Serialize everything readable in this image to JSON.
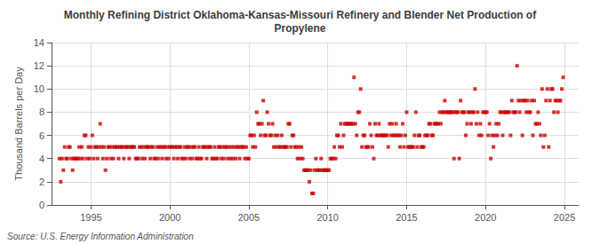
{
  "chart_data": {
    "type": "scatter",
    "title": "Monthly Refining District Oklahoma-Kansas-Missouri Refinery and Blender Net Production of\nPropylene",
    "ylabel": "Thousand Barrels per Day",
    "source": "Source: U.S. Energy Information Administration",
    "color": "#cc0000",
    "marker": "square",
    "grid": true,
    "xlim": [
      1992.5,
      2025.9
    ],
    "ylim": [
      0,
      14
    ],
    "xticks": [
      1995,
      2000,
      2005,
      2010,
      2015,
      2020,
      2025
    ],
    "yticks": [
      0,
      2,
      4,
      6,
      8,
      10,
      12,
      14
    ],
    "x": [
      1993.0,
      1993.083,
      1993.167,
      1993.25,
      1993.333,
      1993.417,
      1993.5,
      1993.583,
      1993.667,
      1993.75,
      1993.833,
      1993.917,
      1994.0,
      1994.083,
      1994.167,
      1994.25,
      1994.333,
      1994.417,
      1994.5,
      1994.583,
      1994.667,
      1994.75,
      1994.833,
      1994.917,
      1995.0,
      1995.083,
      1995.167,
      1995.25,
      1995.333,
      1995.417,
      1995.5,
      1995.583,
      1995.667,
      1995.75,
      1995.833,
      1995.917,
      1996.0,
      1996.083,
      1996.167,
      1996.25,
      1996.333,
      1996.417,
      1996.5,
      1996.583,
      1996.667,
      1996.75,
      1996.833,
      1996.917,
      1997.0,
      1997.083,
      1997.167,
      1997.25,
      1997.333,
      1997.417,
      1997.5,
      1997.583,
      1997.667,
      1997.75,
      1997.833,
      1997.917,
      1998.0,
      1998.083,
      1998.167,
      1998.25,
      1998.333,
      1998.417,
      1998.5,
      1998.583,
      1998.667,
      1998.75,
      1998.833,
      1998.917,
      1999.0,
      1999.083,
      1999.167,
      1999.25,
      1999.333,
      1999.417,
      1999.5,
      1999.583,
      1999.667,
      1999.75,
      1999.833,
      1999.917,
      2000.0,
      2000.083,
      2000.167,
      2000.25,
      2000.333,
      2000.417,
      2000.5,
      2000.583,
      2000.667,
      2000.75,
      2000.833,
      2000.917,
      2001.0,
      2001.083,
      2001.167,
      2001.25,
      2001.333,
      2001.417,
      2001.5,
      2001.583,
      2001.667,
      2001.75,
      2001.833,
      2001.917,
      2002.0,
      2002.083,
      2002.167,
      2002.25,
      2002.333,
      2002.417,
      2002.5,
      2002.583,
      2002.667,
      2002.75,
      2002.833,
      2002.917,
      2003.0,
      2003.083,
      2003.167,
      2003.25,
      2003.333,
      2003.417,
      2003.5,
      2003.583,
      2003.667,
      2003.75,
      2003.833,
      2003.917,
      2004.0,
      2004.083,
      2004.167,
      2004.25,
      2004.333,
      2004.417,
      2004.5,
      2004.583,
      2004.667,
      2004.75,
      2004.833,
      2004.917,
      2005.0,
      2005.083,
      2005.167,
      2005.25,
      2005.333,
      2005.417,
      2005.5,
      2005.583,
      2005.667,
      2005.75,
      2005.833,
      2005.917,
      2006.0,
      2006.083,
      2006.167,
      2006.25,
      2006.333,
      2006.417,
      2006.5,
      2006.583,
      2006.667,
      2006.75,
      2006.833,
      2006.917,
      2007.0,
      2007.083,
      2007.167,
      2007.25,
      2007.333,
      2007.417,
      2007.5,
      2007.583,
      2007.667,
      2007.75,
      2007.833,
      2007.917,
      2008.0,
      2008.083,
      2008.167,
      2008.25,
      2008.333,
      2008.417,
      2008.5,
      2008.583,
      2008.667,
      2008.75,
      2008.833,
      2008.917,
      2009.0,
      2009.083,
      2009.167,
      2009.25,
      2009.333,
      2009.417,
      2009.5,
      2009.583,
      2009.667,
      2009.75,
      2009.833,
      2009.917,
      2010.0,
      2010.083,
      2010.167,
      2010.25,
      2010.333,
      2010.417,
      2010.5,
      2010.583,
      2010.667,
      2010.75,
      2010.833,
      2010.917,
      2011.0,
      2011.083,
      2011.167,
      2011.25,
      2011.333,
      2011.417,
      2011.5,
      2011.583,
      2011.667,
      2011.75,
      2011.833,
      2011.917,
      2012.0,
      2012.083,
      2012.167,
      2012.25,
      2012.333,
      2012.417,
      2012.5,
      2012.583,
      2012.667,
      2012.75,
      2012.833,
      2012.917,
      2013.0,
      2013.083,
      2013.167,
      2013.25,
      2013.333,
      2013.417,
      2013.5,
      2013.583,
      2013.667,
      2013.75,
      2013.833,
      2013.917,
      2014.0,
      2014.083,
      2014.167,
      2014.25,
      2014.333,
      2014.417,
      2014.5,
      2014.583,
      2014.667,
      2014.75,
      2014.833,
      2014.917,
      2015.0,
      2015.083,
      2015.167,
      2015.25,
      2015.333,
      2015.417,
      2015.5,
      2015.583,
      2015.667,
      2015.75,
      2015.833,
      2015.917,
      2016.0,
      2016.083,
      2016.167,
      2016.25,
      2016.333,
      2016.417,
      2016.5,
      2016.583,
      2016.667,
      2016.75,
      2016.833,
      2016.917,
      2017.0,
      2017.083,
      2017.167,
      2017.25,
      2017.333,
      2017.417,
      2017.5,
      2017.583,
      2017.667,
      2017.75,
      2017.833,
      2017.917,
      2018.0,
      2018.083,
      2018.167,
      2018.25,
      2018.333,
      2018.417,
      2018.5,
      2018.583,
      2018.667,
      2018.75,
      2018.833,
      2018.917,
      2019.0,
      2019.083,
      2019.167,
      2019.25,
      2019.333,
      2019.417,
      2019.5,
      2019.583,
      2019.667,
      2019.75,
      2019.833,
      2019.917,
      2020.0,
      2020.083,
      2020.167,
      2020.25,
      2020.333,
      2020.417,
      2020.5,
      2020.583,
      2020.667,
      2020.75,
      2020.833,
      2020.917,
      2021.0,
      2021.083,
      2021.167,
      2021.25,
      2021.333,
      2021.417,
      2021.5,
      2021.583,
      2021.667,
      2021.75,
      2021.833,
      2021.917,
      2022.0,
      2022.083,
      2022.167,
      2022.25,
      2022.333,
      2022.417,
      2022.5,
      2022.583,
      2022.667,
      2022.75,
      2022.833,
      2022.917,
      2023.0,
      2023.083,
      2023.167,
      2023.25,
      2023.333,
      2023.417,
      2023.5,
      2023.583,
      2023.667,
      2023.75,
      2023.833,
      2023.917,
      2024.0,
      2024.083,
      2024.167,
      2024.25,
      2024.333,
      2024.417,
      2024.5,
      2024.583,
      2024.667,
      2024.75,
      2024.833,
      2024.917
    ],
    "values": [
      4,
      2,
      4,
      3,
      5,
      4,
      4,
      5,
      5,
      4,
      3,
      4,
      4,
      4,
      4,
      5,
      4,
      5,
      4,
      6,
      6,
      4,
      5,
      4,
      5,
      6,
      4,
      5,
      5,
      4,
      5,
      7,
      5,
      4,
      5,
      3,
      4,
      5,
      5,
      4,
      5,
      4,
      5,
      5,
      5,
      4,
      5,
      5,
      5,
      4,
      5,
      5,
      5,
      4,
      5,
      5,
      5,
      5,
      4,
      4,
      4,
      5,
      5,
      4,
      5,
      4,
      5,
      5,
      5,
      4,
      5,
      5,
      4,
      4,
      5,
      4,
      5,
      5,
      4,
      5,
      5,
      4,
      5,
      4,
      5,
      5,
      5,
      4,
      5,
      5,
      4,
      5,
      5,
      4,
      4,
      5,
      4,
      5,
      5,
      4,
      5,
      4,
      5,
      5,
      4,
      4,
      5,
      4,
      4,
      5,
      5,
      5,
      4,
      5,
      5,
      5,
      4,
      4,
      5,
      4,
      4,
      5,
      5,
      4,
      5,
      4,
      5,
      5,
      4,
      5,
      4,
      5,
      4,
      5,
      4,
      5,
      5,
      4,
      5,
      5,
      5,
      4,
      5,
      4,
      4,
      6,
      6,
      5,
      6,
      5,
      8,
      7,
      7,
      6,
      7,
      9,
      6,
      6,
      8,
      7,
      6,
      6,
      7,
      5,
      6,
      5,
      6,
      5,
      5,
      6,
      5,
      5,
      5,
      5,
      7,
      7,
      5,
      6,
      6,
      5,
      5,
      4,
      5,
      4,
      5,
      4,
      3,
      3,
      3,
      3,
      2,
      3,
      1,
      1,
      3,
      4,
      3,
      3,
      3,
      4,
      3,
      3,
      3,
      3,
      3,
      3,
      4,
      4,
      4,
      5,
      4,
      6,
      6,
      5,
      7,
      5,
      6,
      7,
      7,
      7,
      7,
      7,
      7,
      7,
      11,
      7,
      6,
      8,
      8,
      10,
      5,
      6,
      6,
      5,
      5,
      5,
      7,
      6,
      5,
      4,
      7,
      6,
      6,
      7,
      6,
      6,
      6,
      6,
      6,
      6,
      5,
      7,
      6,
      7,
      6,
      6,
      7,
      6,
      6,
      5,
      6,
      7,
      5,
      6,
      8,
      5,
      5,
      5,
      5,
      5,
      6,
      8,
      5,
      6,
      6,
      5,
      5,
      5,
      6,
      6,
      6,
      7,
      7,
      6,
      6,
      7,
      7,
      7,
      7,
      8,
      7,
      8,
      8,
      9,
      8,
      8,
      8,
      8,
      8,
      8,
      4,
      8,
      8,
      8,
      4,
      9,
      8,
      8,
      8,
      6,
      7,
      8,
      8,
      7,
      8,
      8,
      10,
      7,
      8,
      6,
      7,
      6,
      8,
      8,
      8,
      8,
      6,
      7,
      4,
      6,
      5,
      6,
      7,
      6,
      7,
      8,
      8,
      6,
      8,
      8,
      8,
      8,
      8,
      6,
      9,
      8,
      8,
      8,
      12,
      9,
      8,
      9,
      6,
      9,
      9,
      8,
      9,
      8,
      8,
      9,
      6,
      9,
      7,
      7,
      8,
      7,
      6,
      10,
      5,
      6,
      9,
      10,
      5,
      9,
      10,
      10,
      8,
      9,
      9,
      8,
      9,
      9,
      10,
      11
    ]
  }
}
